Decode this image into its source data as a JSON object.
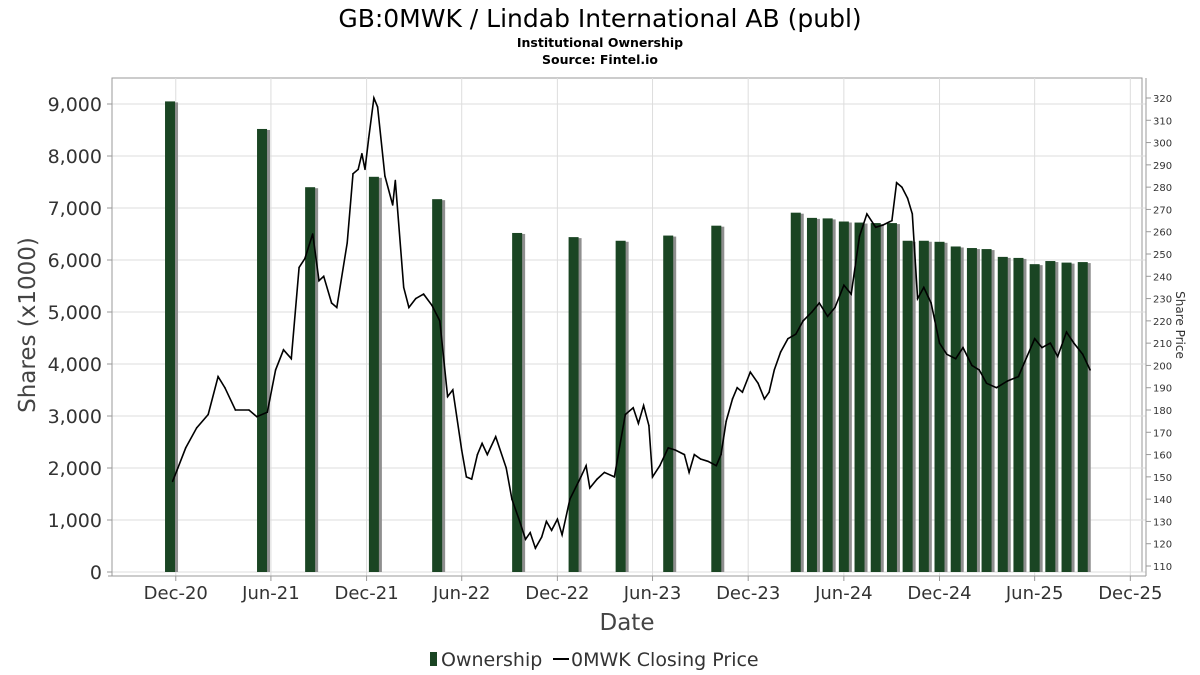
{
  "header": {
    "title": "GB:0MWK / Lindab International AB (publ)",
    "subtitle": "Institutional Ownership",
    "source": "Source: Fintel.io"
  },
  "colors": {
    "bar_face": "#1a4523",
    "bar_shadow": "#8f8f8f",
    "line": "#000000",
    "grid": "#dddddd"
  },
  "chart_data": {
    "type": "bar",
    "title": "GB:0MWK / Lindab International AB (publ)",
    "xlabel": "Date",
    "ylabel": "Shares (x1000)",
    "y2label": "Share Price",
    "xlim": [
      "2020-08-01",
      "2025-12-31"
    ],
    "ylim": [
      0,
      9500
    ],
    "y2lim": [
      108,
      322
    ],
    "x_ticks": [
      {
        "date": "2020-12-01",
        "label": "Dec-20"
      },
      {
        "date": "2021-06-01",
        "label": "Jun-21"
      },
      {
        "date": "2021-12-01",
        "label": "Dec-21"
      },
      {
        "date": "2022-06-01",
        "label": "Jun-22"
      },
      {
        "date": "2022-12-01",
        "label": "Dec-22"
      },
      {
        "date": "2023-06-01",
        "label": "Jun-23"
      },
      {
        "date": "2023-12-01",
        "label": "Dec-23"
      },
      {
        "date": "2024-06-01",
        "label": "Jun-24"
      },
      {
        "date": "2024-12-01",
        "label": "Dec-24"
      },
      {
        "date": "2025-06-01",
        "label": "Jun-25"
      },
      {
        "date": "2025-12-01",
        "label": "Dec-25"
      }
    ],
    "y_ticks": [
      {
        "value": 0,
        "label": "0"
      },
      {
        "value": 1000,
        "label": "1,000"
      },
      {
        "value": 2000,
        "label": "2,000"
      },
      {
        "value": 3000,
        "label": "3,000"
      },
      {
        "value": 4000,
        "label": "4,000"
      },
      {
        "value": 5000,
        "label": "5,000"
      },
      {
        "value": 6000,
        "label": "6,000"
      },
      {
        "value": 7000,
        "label": "7,000"
      },
      {
        "value": 8000,
        "label": "8,000"
      },
      {
        "value": 9000,
        "label": "9,000"
      }
    ],
    "y2_ticks": [
      110,
      120,
      130,
      140,
      150,
      160,
      170,
      180,
      190,
      200,
      210,
      220,
      230,
      240,
      250,
      260,
      270,
      280,
      290,
      300,
      310,
      320
    ],
    "series": [
      {
        "name": "Ownership",
        "type": "bar",
        "points": [
          {
            "date": "2020-11-20",
            "value": 9050
          },
          {
            "date": "2021-05-15",
            "value": 8520
          },
          {
            "date": "2021-08-15",
            "value": 7400
          },
          {
            "date": "2021-12-15",
            "value": 7600
          },
          {
            "date": "2022-04-15",
            "value": 7170
          },
          {
            "date": "2022-09-15",
            "value": 6520
          },
          {
            "date": "2023-01-01",
            "value": 6440
          },
          {
            "date": "2023-04-01",
            "value": 6370
          },
          {
            "date": "2023-07-01",
            "value": 6470
          },
          {
            "date": "2023-10-01",
            "value": 6660
          },
          {
            "date": "2024-03-01",
            "value": 6910
          },
          {
            "date": "2024-04-01",
            "value": 6810
          },
          {
            "date": "2024-05-01",
            "value": 6800
          },
          {
            "date": "2024-06-01",
            "value": 6740
          },
          {
            "date": "2024-07-01",
            "value": 6720
          },
          {
            "date": "2024-08-01",
            "value": 6710
          },
          {
            "date": "2024-09-01",
            "value": 6710
          },
          {
            "date": "2024-10-01",
            "value": 6370
          },
          {
            "date": "2024-11-01",
            "value": 6370
          },
          {
            "date": "2024-12-01",
            "value": 6350
          },
          {
            "date": "2025-01-01",
            "value": 6260
          },
          {
            "date": "2025-02-01",
            "value": 6230
          },
          {
            "date": "2025-03-01",
            "value": 6210
          },
          {
            "date": "2025-04-01",
            "value": 6060
          },
          {
            "date": "2025-05-01",
            "value": 6040
          },
          {
            "date": "2025-06-01",
            "value": 5920
          },
          {
            "date": "2025-07-01",
            "value": 5980
          },
          {
            "date": "2025-08-01",
            "value": 5950
          },
          {
            "date": "2025-09-01",
            "value": 5960
          }
        ]
      },
      {
        "name": "0MWK Closing Price",
        "type": "line",
        "axis": "right",
        "points": [
          {
            "date": "2020-11-25",
            "value": 148
          },
          {
            "date": "2020-12-05",
            "value": 154
          },
          {
            "date": "2020-12-20",
            "value": 163
          },
          {
            "date": "2021-01-10",
            "value": 172
          },
          {
            "date": "2021-02-01",
            "value": 178
          },
          {
            "date": "2021-02-20",
            "value": 195
          },
          {
            "date": "2021-03-05",
            "value": 190
          },
          {
            "date": "2021-03-25",
            "value": 180
          },
          {
            "date": "2021-04-20",
            "value": 180
          },
          {
            "date": "2021-05-05",
            "value": 177
          },
          {
            "date": "2021-05-25",
            "value": 179
          },
          {
            "date": "2021-06-10",
            "value": 198
          },
          {
            "date": "2021-06-25",
            "value": 207
          },
          {
            "date": "2021-07-10",
            "value": 203
          },
          {
            "date": "2021-07-25",
            "value": 244
          },
          {
            "date": "2021-08-05",
            "value": 248
          },
          {
            "date": "2021-08-20",
            "value": 259
          },
          {
            "date": "2021-09-01",
            "value": 238
          },
          {
            "date": "2021-09-10",
            "value": 240
          },
          {
            "date": "2021-09-25",
            "value": 228
          },
          {
            "date": "2021-10-05",
            "value": 226
          },
          {
            "date": "2021-10-25",
            "value": 255
          },
          {
            "date": "2021-11-05",
            "value": 286
          },
          {
            "date": "2021-11-15",
            "value": 288
          },
          {
            "date": "2021-11-22",
            "value": 295
          },
          {
            "date": "2021-11-28",
            "value": 288
          },
          {
            "date": "2021-12-05",
            "value": 302
          },
          {
            "date": "2021-12-15",
            "value": 320
          },
          {
            "date": "2021-12-22",
            "value": 316
          },
          {
            "date": "2022-01-05",
            "value": 285
          },
          {
            "date": "2022-01-20",
            "value": 272
          },
          {
            "date": "2022-01-25",
            "value": 283
          },
          {
            "date": "2022-02-10",
            "value": 235
          },
          {
            "date": "2022-02-20",
            "value": 226
          },
          {
            "date": "2022-03-05",
            "value": 230
          },
          {
            "date": "2022-03-20",
            "value": 232
          },
          {
            "date": "2022-04-05",
            "value": 227
          },
          {
            "date": "2022-04-20",
            "value": 220
          },
          {
            "date": "2022-05-05",
            "value": 186
          },
          {
            "date": "2022-05-15",
            "value": 189
          },
          {
            "date": "2022-06-01",
            "value": 162
          },
          {
            "date": "2022-06-10",
            "value": 150
          },
          {
            "date": "2022-06-20",
            "value": 149
          },
          {
            "date": "2022-07-01",
            "value": 160
          },
          {
            "date": "2022-07-10",
            "value": 165
          },
          {
            "date": "2022-07-20",
            "value": 160
          },
          {
            "date": "2022-08-05",
            "value": 168
          },
          {
            "date": "2022-08-25",
            "value": 154
          },
          {
            "date": "2022-09-05",
            "value": 140
          },
          {
            "date": "2022-09-20",
            "value": 130
          },
          {
            "date": "2022-10-01",
            "value": 122
          },
          {
            "date": "2022-10-10",
            "value": 125
          },
          {
            "date": "2022-10-20",
            "value": 118
          },
          {
            "date": "2022-11-01",
            "value": 123
          },
          {
            "date": "2022-11-10",
            "value": 130
          },
          {
            "date": "2022-11-20",
            "value": 126
          },
          {
            "date": "2022-12-01",
            "value": 131
          },
          {
            "date": "2022-12-10",
            "value": 124
          },
          {
            "date": "2022-12-25",
            "value": 140
          },
          {
            "date": "2023-01-15",
            "value": 150
          },
          {
            "date": "2023-01-25",
            "value": 155
          },
          {
            "date": "2023-02-01",
            "value": 145
          },
          {
            "date": "2023-02-15",
            "value": 149
          },
          {
            "date": "2023-03-01",
            "value": 152
          },
          {
            "date": "2023-03-20",
            "value": 150
          },
          {
            "date": "2023-04-10",
            "value": 178
          },
          {
            "date": "2023-04-25",
            "value": 181
          },
          {
            "date": "2023-05-05",
            "value": 174
          },
          {
            "date": "2023-05-15",
            "value": 182
          },
          {
            "date": "2023-05-25",
            "value": 173
          },
          {
            "date": "2023-06-01",
            "value": 150
          },
          {
            "date": "2023-06-15",
            "value": 155
          },
          {
            "date": "2023-07-01",
            "value": 163
          },
          {
            "date": "2023-07-15",
            "value": 162
          },
          {
            "date": "2023-08-01",
            "value": 160
          },
          {
            "date": "2023-08-10",
            "value": 152
          },
          {
            "date": "2023-08-20",
            "value": 160
          },
          {
            "date": "2023-09-01",
            "value": 158
          },
          {
            "date": "2023-09-15",
            "value": 157
          },
          {
            "date": "2023-10-01",
            "value": 155
          },
          {
            "date": "2023-10-10",
            "value": 160
          },
          {
            "date": "2023-10-20",
            "value": 175
          },
          {
            "date": "2023-11-01",
            "value": 185
          },
          {
            "date": "2023-11-10",
            "value": 190
          },
          {
            "date": "2023-11-20",
            "value": 188
          },
          {
            "date": "2023-12-05",
            "value": 197
          },
          {
            "date": "2023-12-20",
            "value": 192
          },
          {
            "date": "2024-01-01",
            "value": 185
          },
          {
            "date": "2024-01-10",
            "value": 188
          },
          {
            "date": "2024-01-20",
            "value": 198
          },
          {
            "date": "2024-02-01",
            "value": 206
          },
          {
            "date": "2024-02-15",
            "value": 212
          },
          {
            "date": "2024-03-01",
            "value": 214
          },
          {
            "date": "2024-03-15",
            "value": 220
          },
          {
            "date": "2024-04-01",
            "value": 224
          },
          {
            "date": "2024-04-15",
            "value": 228
          },
          {
            "date": "2024-05-01",
            "value": 222
          },
          {
            "date": "2024-05-15",
            "value": 226
          },
          {
            "date": "2024-06-01",
            "value": 236
          },
          {
            "date": "2024-06-15",
            "value": 232
          },
          {
            "date": "2024-07-01",
            "value": 258
          },
          {
            "date": "2024-07-15",
            "value": 268
          },
          {
            "date": "2024-08-01",
            "value": 262
          },
          {
            "date": "2024-08-15",
            "value": 263
          },
          {
            "date": "2024-09-01",
            "value": 265
          },
          {
            "date": "2024-09-10",
            "value": 282
          },
          {
            "date": "2024-09-20",
            "value": 280
          },
          {
            "date": "2024-10-01",
            "value": 275
          },
          {
            "date": "2024-10-10",
            "value": 268
          },
          {
            "date": "2024-10-20",
            "value": 230
          },
          {
            "date": "2024-11-01",
            "value": 235
          },
          {
            "date": "2024-11-15",
            "value": 228
          },
          {
            "date": "2024-12-01",
            "value": 210
          },
          {
            "date": "2024-12-15",
            "value": 205
          },
          {
            "date": "2025-01-01",
            "value": 203
          },
          {
            "date": "2025-01-15",
            "value": 208
          },
          {
            "date": "2025-02-01",
            "value": 200
          },
          {
            "date": "2025-02-15",
            "value": 198
          },
          {
            "date": "2025-03-01",
            "value": 192
          },
          {
            "date": "2025-03-20",
            "value": 190
          },
          {
            "date": "2025-04-10",
            "value": 193
          },
          {
            "date": "2025-05-01",
            "value": 195
          },
          {
            "date": "2025-06-01",
            "value": 212
          },
          {
            "date": "2025-06-15",
            "value": 208
          },
          {
            "date": "2025-07-01",
            "value": 210
          },
          {
            "date": "2025-07-15",
            "value": 204
          },
          {
            "date": "2025-08-01",
            "value": 215
          },
          {
            "date": "2025-08-15",
            "value": 210
          },
          {
            "date": "2025-09-01",
            "value": 205
          },
          {
            "date": "2025-09-15",
            "value": 198
          }
        ]
      }
    ],
    "legend": {
      "placement": "bottom",
      "items": [
        {
          "label": "Ownership",
          "symbol": "bar"
        },
        {
          "label": "0MWK Closing Price",
          "symbol": "line"
        }
      ]
    },
    "grid": true
  }
}
